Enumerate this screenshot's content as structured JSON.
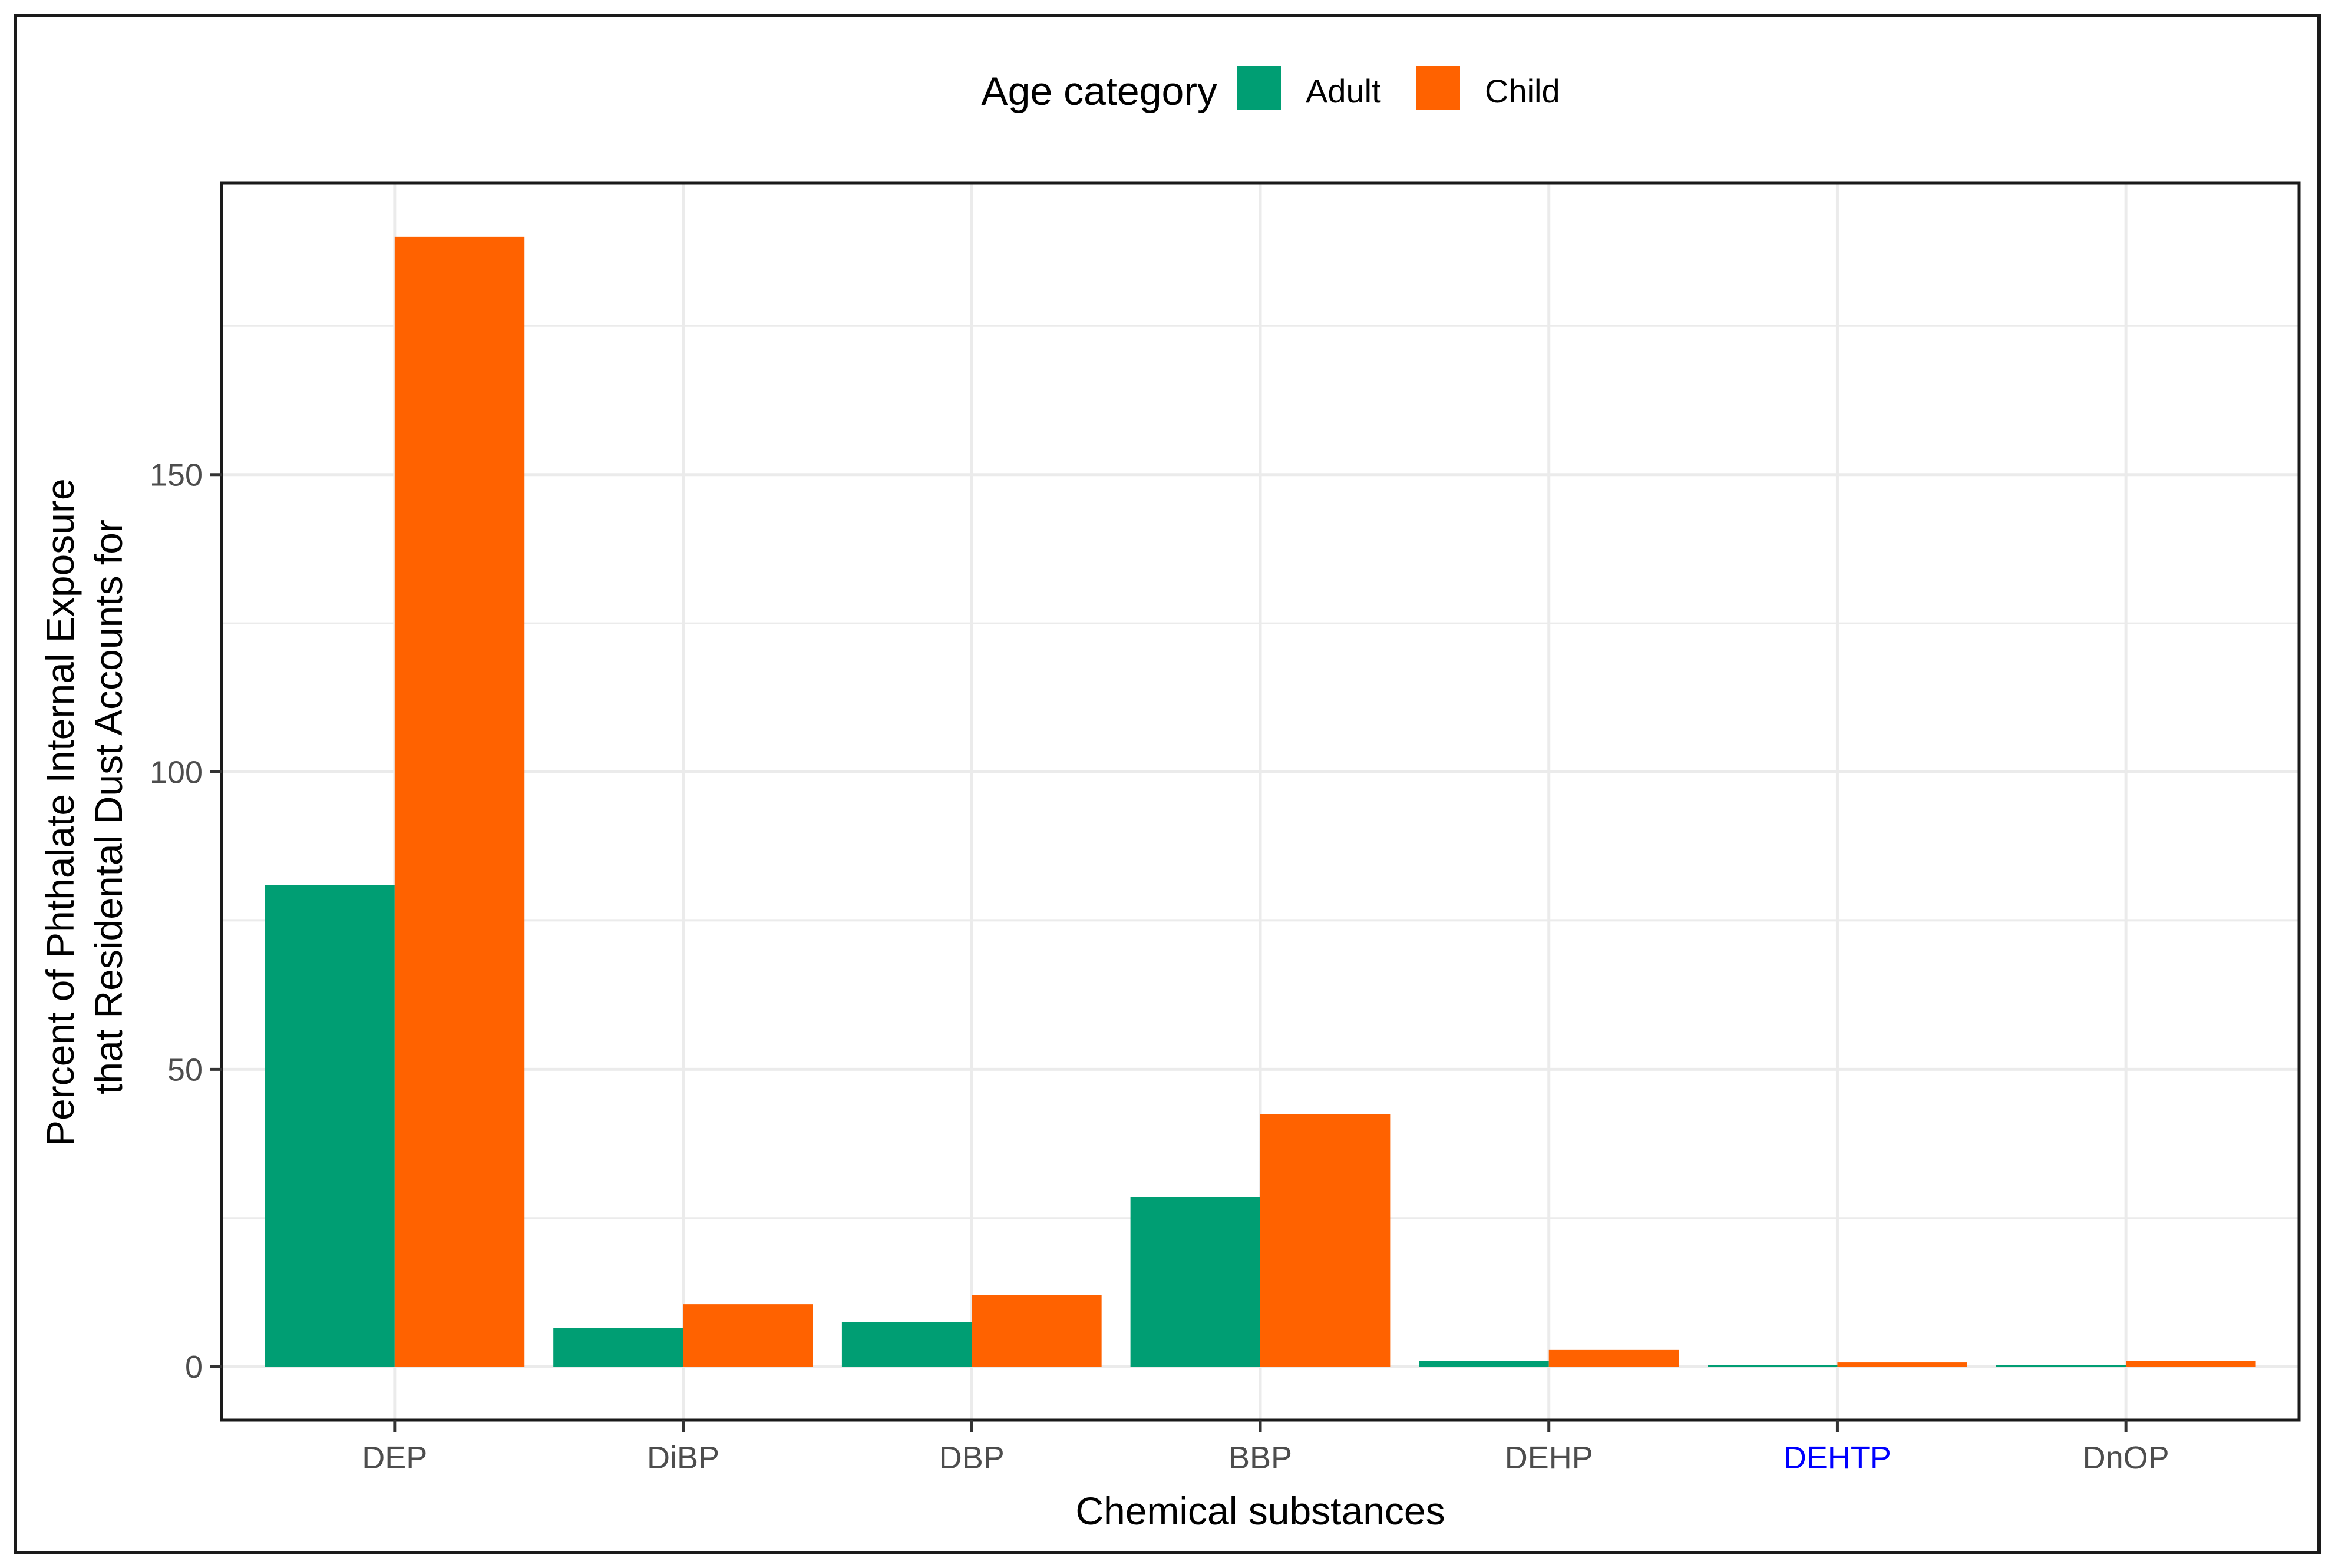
{
  "chart_data": {
    "type": "bar",
    "title": "",
    "xlabel": "Chemical substances",
    "ylabel_lines": [
      "Percent of Phthalate Internal Exposure",
      "that Residental Dust Accounts for"
    ],
    "categories": [
      "DEP",
      "DiBP",
      "DBP",
      "BBP",
      "DEHP",
      "DEHTP",
      "DnOP"
    ],
    "highlighted_category": "DEHTP",
    "series": [
      {
        "name": "Adult",
        "color": "#009E73",
        "values": [
          81,
          6.5,
          7.5,
          28.5,
          1.0,
          0.3,
          0.3
        ]
      },
      {
        "name": "Child",
        "color": "#FF6200",
        "values": [
          190,
          10.5,
          12,
          42.5,
          2.8,
          0.7,
          1.0
        ]
      }
    ],
    "ylim": [
      -9,
      199
    ],
    "yticks": [
      0,
      50,
      100,
      150
    ],
    "ytick_labels": [
      "0",
      "50",
      "100",
      "150"
    ],
    "grid": true,
    "legend": {
      "title": "Age category",
      "position": "top"
    },
    "colors": {
      "highlight_label": "#0000FF",
      "frame": "#1a1a1a",
      "grid": "#EBEBEB"
    }
  }
}
